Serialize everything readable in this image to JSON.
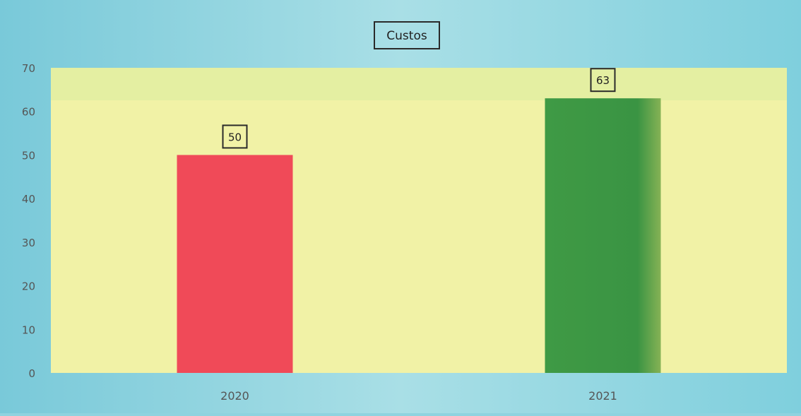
{
  "chart_data": {
    "type": "bar",
    "title": "Custos",
    "xlabel": "",
    "ylabel": "",
    "categories": [
      "2020",
      "2021"
    ],
    "values": [
      50,
      63
    ],
    "ylim": [
      0,
      70
    ],
    "yticks": [
      0,
      10,
      20,
      30,
      40,
      50,
      60,
      70
    ],
    "data_labels": [
      "50",
      "63"
    ],
    "bar_colors": [
      "#f04a58",
      "#3c9a44"
    ],
    "plot_background": "#f1f2a6",
    "outer_background": "#8fd3df",
    "grid": false,
    "legend": "none"
  }
}
